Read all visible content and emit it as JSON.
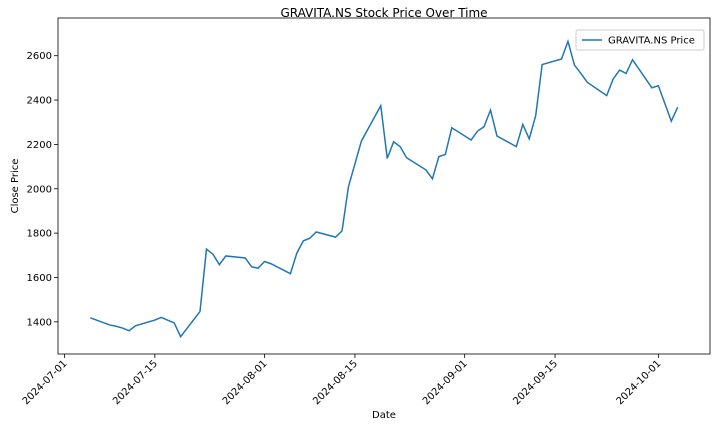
{
  "chart_data": {
    "type": "line",
    "title": "GRAVITA.NS Stock Price Over Time",
    "x_label": "Date",
    "y_label": "Close Price",
    "x": [
      "2024-07-05",
      "2024-07-08",
      "2024-07-09",
      "2024-07-10",
      "2024-07-11",
      "2024-07-12",
      "2024-07-15",
      "2024-07-16",
      "2024-07-18",
      "2024-07-19",
      "2024-07-22",
      "2024-07-23",
      "2024-07-24",
      "2024-07-25",
      "2024-07-26",
      "2024-07-29",
      "2024-07-30",
      "2024-07-31",
      "2024-08-01",
      "2024-08-02",
      "2024-08-05",
      "2024-08-06",
      "2024-08-07",
      "2024-08-08",
      "2024-08-09",
      "2024-08-12",
      "2024-08-13",
      "2024-08-14",
      "2024-08-16",
      "2024-08-19",
      "2024-08-20",
      "2024-08-21",
      "2024-08-22",
      "2024-08-23",
      "2024-08-26",
      "2024-08-27",
      "2024-08-28",
      "2024-08-29",
      "2024-08-30",
      "2024-09-02",
      "2024-09-03",
      "2024-09-04",
      "2024-09-05",
      "2024-09-06",
      "2024-09-09",
      "2024-09-10",
      "2024-09-11",
      "2024-09-12",
      "2024-09-13",
      "2024-09-16",
      "2024-09-17",
      "2024-09-18",
      "2024-09-19",
      "2024-09-20",
      "2024-09-23",
      "2024-09-24",
      "2024-09-25",
      "2024-09-26",
      "2024-09-27",
      "2024-09-30",
      "2024-10-01",
      "2024-10-03",
      "2024-10-04"
    ],
    "series": [
      {
        "name": "GRAVITA.NS Price",
        "color": "#1f77b4",
        "values": [
          1418,
          1386,
          1380,
          1372,
          1360,
          1382,
          1408,
          1420,
          1395,
          1333,
          1447,
          1728,
          1705,
          1658,
          1697,
          1688,
          1648,
          1642,
          1672,
          1662,
          1617,
          1710,
          1765,
          1777,
          1805,
          1782,
          1810,
          2010,
          2215,
          2375,
          2137,
          2212,
          2190,
          2140,
          2085,
          2045,
          2145,
          2155,
          2275,
          2220,
          2260,
          2280,
          2355,
          2238,
          2190,
          2290,
          2225,
          2330,
          2560,
          2585,
          2665,
          2558,
          2520,
          2480,
          2420,
          2495,
          2535,
          2520,
          2582,
          2455,
          2465,
          2305,
          2368
        ]
      }
    ],
    "xlim": [
      "2024-06-30",
      "2024-10-09"
    ],
    "xticks": [
      "2024-07-01",
      "2024-07-15",
      "2024-08-01",
      "2024-08-15",
      "2024-09-01",
      "2024-09-15",
      "2024-10-01"
    ],
    "ylim": [
      1255,
      2770
    ],
    "yticks": [
      1400,
      1600,
      1800,
      2000,
      2200,
      2400,
      2600
    ],
    "legend": "upper right",
    "grid": false
  }
}
